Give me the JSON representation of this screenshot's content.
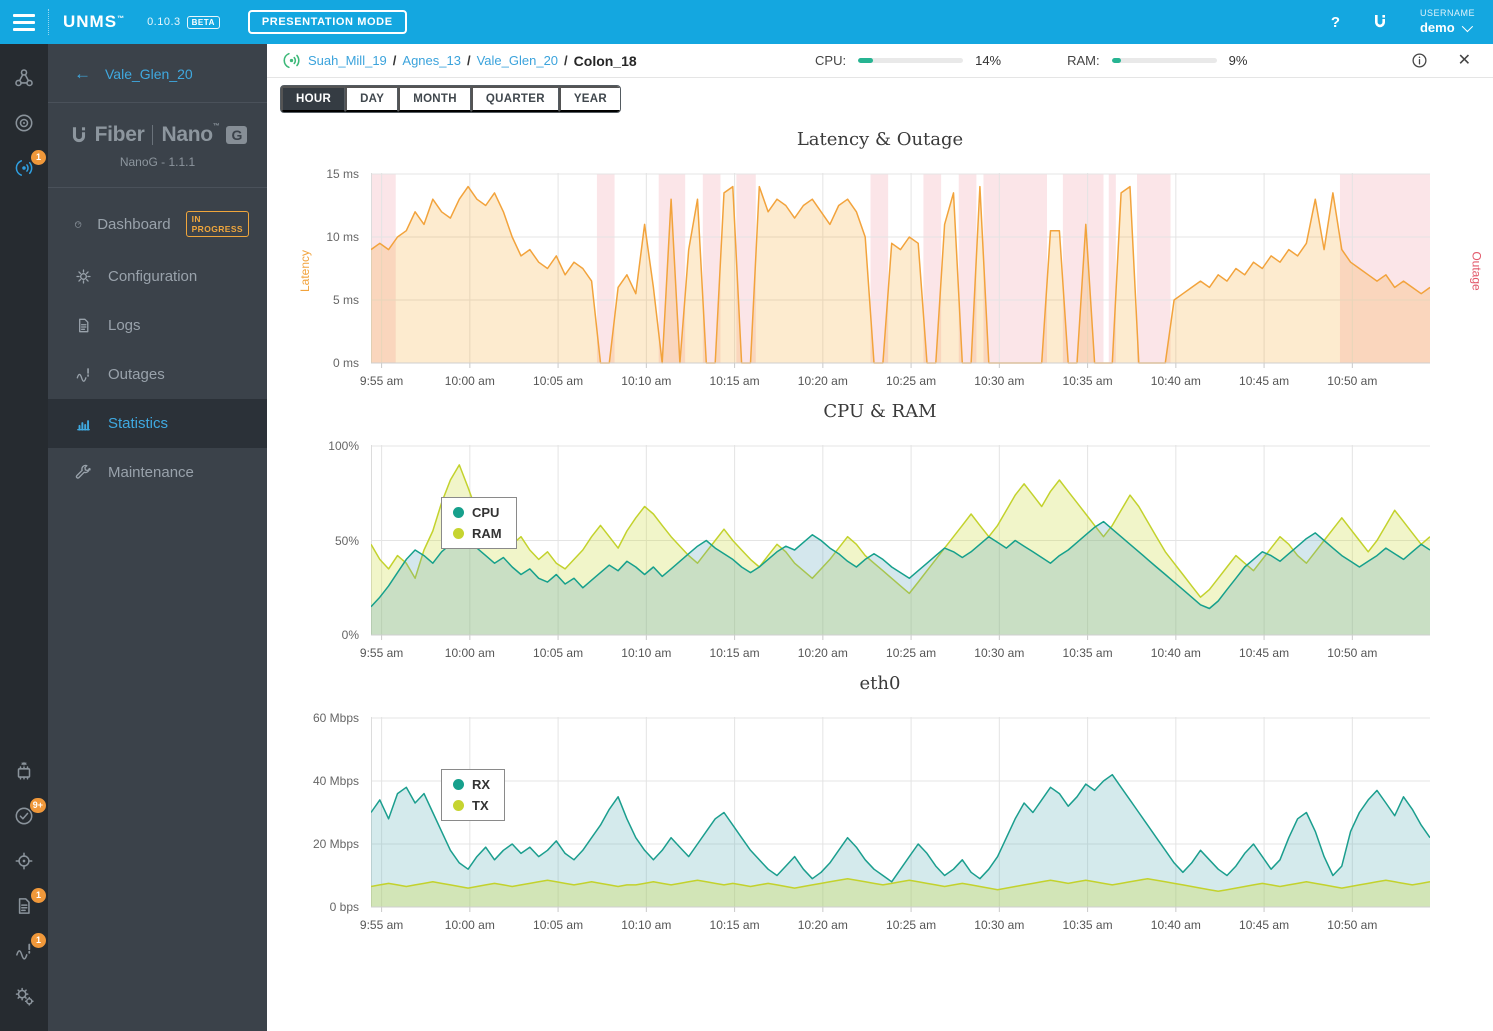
{
  "topbar": {
    "brand": "UNMS",
    "brand_tm": "™",
    "version": "0.10.3",
    "beta_label": "BETA",
    "presentation_label": "PRESENTATION MODE",
    "help_label": "?",
    "username_label": "USERNAME",
    "username": "demo"
  },
  "iconbar": {
    "top": [
      {
        "icon": "sites-icon"
      },
      {
        "icon": "radar-icon"
      },
      {
        "icon": "antenna-icon",
        "badge": "1",
        "active": true
      }
    ],
    "bottom": [
      {
        "icon": "chip-icon"
      },
      {
        "icon": "check-circle-icon",
        "badge": "9+"
      },
      {
        "icon": "locate-icon"
      },
      {
        "icon": "document-icon",
        "badge": "1"
      },
      {
        "icon": "pulse-icon",
        "badge": "1"
      },
      {
        "icon": "gears-icon"
      }
    ]
  },
  "sidebar": {
    "back_label": "Vale_Glen_20",
    "logo": {
      "u": "U",
      "fiber": "Fiber",
      "nano": "Nano",
      "tm": "™",
      "g_badge": "G"
    },
    "firmware": "NanoG - 1.1.1",
    "items": [
      {
        "label": "Dashboard",
        "icon": "gauge-icon",
        "badge": "IN PROGRESS",
        "active": false
      },
      {
        "label": "Configuration",
        "icon": "gear-icon",
        "badge": null,
        "active": false
      },
      {
        "label": "Logs",
        "icon": "document-icon",
        "badge": null,
        "active": false
      },
      {
        "label": "Outages",
        "icon": "pulse-icon",
        "badge": null,
        "active": false
      },
      {
        "label": "Statistics",
        "icon": "bar-chart-icon",
        "badge": null,
        "active": true
      },
      {
        "label": "Maintenance",
        "icon": "wrench-icon",
        "badge": null,
        "active": false
      }
    ]
  },
  "header": {
    "breadcrumb": [
      "Suah_Mill_19",
      "Agnes_13",
      "Vale_Glen_20"
    ],
    "breadcrumb_current": "Colon_18",
    "cpu_label": "CPU:",
    "cpu_value": "14%",
    "cpu_percent": 14,
    "ram_label": "RAM:",
    "ram_value": "9%",
    "ram_percent": 9
  },
  "tabs": {
    "items": [
      "HOUR",
      "DAY",
      "MONTH",
      "QUARTER",
      "YEAR"
    ],
    "active": "HOUR"
  },
  "colors": {
    "topbar_blue": "#14a7e0",
    "accent_blue": "#3fa9e0",
    "progress_green": "#26b492",
    "latency_orange": "#f2a33c",
    "outage_pink": "rgba(233,92,113,0.16)",
    "outage_label_red": "#e2596b",
    "teal": "#16a08c",
    "yellow_green": "#c6d430",
    "badge_orange": "#f0983a"
  },
  "chart_data": [
    {
      "type": "area",
      "title": "Latency & Outage",
      "left_axis_label": "Latency",
      "right_axis_label": "Outage",
      "xlim_minutes": [
        0,
        60
      ],
      "ylim": [
        0,
        15
      ],
      "yticks": [
        {
          "v": 0,
          "label": "0 ms"
        },
        {
          "v": 5,
          "label": "5 ms"
        },
        {
          "v": 10,
          "label": "10 ms"
        },
        {
          "v": 15,
          "label": "15 ms"
        }
      ],
      "xticks": {
        "positions": [
          0.6,
          5.6,
          10.6,
          15.6,
          20.6,
          25.6,
          30.6,
          35.6,
          40.6,
          45.6,
          50.6,
          55.6
        ],
        "labels": [
          "9:55 am",
          "10:00 am",
          "10:05 am",
          "10:10 am",
          "10:15 am",
          "10:20 am",
          "10:25 am",
          "10:30 am",
          "10:35 am",
          "10:40 am",
          "10:45 am",
          "10:50 am"
        ]
      },
      "outage_intervals_minutes": [
        [
          0,
          1.4
        ],
        [
          12.8,
          13.8
        ],
        [
          16.3,
          17.8
        ],
        [
          18.8,
          19.8
        ],
        [
          20.7,
          21.8
        ],
        [
          28.3,
          29.3
        ],
        [
          31.3,
          32.3
        ],
        [
          33.3,
          34.3
        ],
        [
          34.7,
          38.3
        ],
        [
          39.2,
          41.5
        ],
        [
          41.8,
          42.2
        ],
        [
          43.4,
          45.3
        ],
        [
          54.9,
          60
        ]
      ],
      "outage_color": "rgba(233,92,113,0.16)",
      "series": [
        {
          "name": "Latency",
          "color": "#f2a33c",
          "fill": "rgba(245,166,35,0.22)",
          "values": [
            9,
            9.5,
            9,
            10,
            10.5,
            12,
            11,
            13,
            12,
            11.5,
            13,
            14,
            13,
            12.5,
            13.5,
            12,
            10,
            8.5,
            9,
            8,
            7.5,
            8.5,
            7,
            8,
            7.5,
            6.5,
            0,
            0,
            6,
            7,
            5.5,
            11,
            6,
            0,
            13,
            0,
            9,
            13,
            0,
            0,
            13.5,
            14,
            0,
            0,
            14,
            12,
            13,
            12.5,
            11.5,
            12.5,
            13,
            12,
            11,
            12.5,
            13,
            12,
            10,
            0,
            0,
            9.5,
            9,
            10,
            9.5,
            0,
            0,
            11,
            13.5,
            0,
            0,
            14,
            0,
            0,
            0,
            0,
            0,
            0,
            0,
            10.5,
            10.5,
            0,
            0,
            11,
            0,
            0,
            0,
            13.5,
            14,
            0,
            0,
            0,
            0,
            5,
            5.5,
            6,
            6.5,
            6,
            7,
            6.5,
            7.5,
            7,
            8,
            7.5,
            8.5,
            8,
            9,
            8.5,
            9.5,
            13,
            9,
            13.5,
            9,
            8,
            7.5,
            7,
            6.5,
            7,
            6,
            6.5,
            6,
            5.5,
            6
          ]
        }
      ],
      "legend": false
    },
    {
      "type": "area",
      "title": "CPU & RAM",
      "xlim_minutes": [
        0,
        60
      ],
      "ylim": [
        0,
        100
      ],
      "yticks": [
        {
          "v": 0,
          "label": "0%"
        },
        {
          "v": 50,
          "label": "50%"
        },
        {
          "v": 100,
          "label": "100%"
        }
      ],
      "xticks": {
        "positions": [
          0.6,
          5.6,
          10.6,
          15.6,
          20.6,
          25.6,
          30.6,
          35.6,
          40.6,
          45.6,
          50.6,
          55.6
        ],
        "labels": [
          "9:55 am",
          "10:00 am",
          "10:05 am",
          "10:10 am",
          "10:15 am",
          "10:20 am",
          "10:25 am",
          "10:30 am",
          "10:35 am",
          "10:40 am",
          "10:45 am",
          "10:50 am"
        ]
      },
      "series": [
        {
          "name": "RAM",
          "color": "#c3d22d",
          "fill": "rgba(205,220,60,0.28)",
          "values": [
            48,
            40,
            35,
            42,
            38,
            30,
            45,
            55,
            70,
            82,
            90,
            78,
            65,
            58,
            62,
            55,
            48,
            52,
            45,
            40,
            44,
            38,
            35,
            40,
            45,
            52,
            58,
            52,
            46,
            55,
            62,
            68,
            64,
            58,
            52,
            47,
            42,
            38,
            44,
            50,
            56,
            50,
            45,
            40,
            36,
            42,
            48,
            44,
            38,
            34,
            30,
            35,
            40,
            46,
            52,
            48,
            42,
            38,
            34,
            30,
            26,
            22,
            28,
            34,
            40,
            46,
            52,
            58,
            64,
            58,
            52,
            58,
            66,
            74,
            80,
            74,
            68,
            76,
            82,
            76,
            70,
            64,
            58,
            52,
            58,
            66,
            74,
            68,
            60,
            52,
            44,
            38,
            32,
            26,
            20,
            24,
            30,
            36,
            42,
            38,
            34,
            40,
            46,
            52,
            48,
            42,
            38,
            44,
            50,
            56,
            62,
            56,
            50,
            44,
            50,
            58,
            66,
            60,
            54,
            48,
            52
          ]
        },
        {
          "name": "CPU",
          "color": "#16a08c",
          "fill": "rgba(84,160,185,0.25)",
          "values": [
            15,
            20,
            26,
            33,
            40,
            45,
            42,
            38,
            44,
            48,
            52,
            49,
            46,
            42,
            38,
            41,
            36,
            32,
            35,
            30,
            28,
            32,
            27,
            30,
            25,
            29,
            33,
            37,
            34,
            39,
            36,
            32,
            36,
            31,
            35,
            39,
            43,
            47,
            50,
            46,
            43,
            40,
            36,
            33,
            36,
            40,
            44,
            47,
            45,
            49,
            53,
            50,
            46,
            43,
            39,
            36,
            40,
            43,
            40,
            36,
            33,
            30,
            34,
            38,
            42,
            46,
            44,
            41,
            44,
            48,
            52,
            49,
            46,
            50,
            47,
            44,
            41,
            38,
            42,
            45,
            49,
            53,
            57,
            60,
            56,
            52,
            48,
            44,
            40,
            36,
            32,
            28,
            24,
            20,
            16,
            14,
            18,
            24,
            30,
            36,
            40,
            44,
            42,
            39,
            43,
            47,
            51,
            54,
            50,
            46,
            42,
            39,
            36,
            39,
            42,
            46,
            43,
            40,
            44,
            48,
            45
          ]
        }
      ],
      "legend": [
        {
          "name": "CPU",
          "color": "#16a08c"
        },
        {
          "name": "RAM",
          "color": "#c6d430"
        }
      ]
    },
    {
      "type": "area",
      "title": "eth0",
      "xlim_minutes": [
        0,
        60
      ],
      "ylim": [
        0,
        60
      ],
      "yticks": [
        {
          "v": 0,
          "label": "0 bps"
        },
        {
          "v": 20,
          "label": "20 Mbps"
        },
        {
          "v": 40,
          "label": "40 Mbps"
        },
        {
          "v": 60,
          "label": "60 Mbps"
        }
      ],
      "xticks": {
        "positions": [
          0.6,
          5.6,
          10.6,
          15.6,
          20.6,
          25.6,
          30.6,
          35.6,
          40.6,
          45.6,
          50.6,
          55.6
        ],
        "labels": [
          "9:55 am",
          "10:00 am",
          "10:05 am",
          "10:10 am",
          "10:15 am",
          "10:20 am",
          "10:25 am",
          "10:30 am",
          "10:35 am",
          "10:40 am",
          "10:45 am",
          "10:50 am"
        ]
      },
      "series": [
        {
          "name": "RX",
          "color": "#1b9e8e",
          "fill": "rgba(100,180,185,0.28)",
          "values": [
            30,
            34,
            28,
            36,
            38,
            33,
            36,
            30,
            24,
            18,
            14,
            12,
            16,
            19,
            15,
            18,
            20,
            17,
            19,
            16,
            18,
            21,
            17,
            15,
            18,
            22,
            26,
            31,
            35,
            28,
            22,
            18,
            15,
            18,
            22,
            19,
            16,
            20,
            24,
            28,
            30,
            26,
            22,
            18,
            15,
            12,
            10,
            13,
            16,
            12,
            9,
            11,
            14,
            18,
            22,
            19,
            15,
            12,
            10,
            8,
            12,
            16,
            20,
            17,
            13,
            10,
            12,
            15,
            11,
            9,
            12,
            16,
            22,
            28,
            33,
            30,
            34,
            38,
            36,
            32,
            35,
            39,
            37,
            40,
            42,
            38,
            34,
            30,
            26,
            22,
            18,
            14,
            11,
            14,
            18,
            15,
            12,
            10,
            13,
            17,
            20,
            16,
            12,
            15,
            22,
            28,
            30,
            24,
            16,
            10,
            13,
            24,
            30,
            34,
            37,
            33,
            29,
            35,
            31,
            26,
            22
          ]
        },
        {
          "name": "TX",
          "color": "#c3d22d",
          "fill": "rgba(205,220,60,0.30)",
          "values": [
            6.5,
            7,
            7.5,
            7,
            6.5,
            7,
            7.5,
            8,
            7.5,
            7,
            6.5,
            6,
            6.5,
            7,
            7.5,
            7,
            6.5,
            7,
            7.5,
            8,
            8.5,
            8,
            7.5,
            7,
            7.5,
            8,
            7.5,
            7,
            6.5,
            7,
            7,
            7.5,
            8,
            7.5,
            7,
            7.5,
            8,
            8.5,
            8,
            7.5,
            7,
            7.5,
            7,
            6.5,
            7,
            7.5,
            7,
            6.5,
            6,
            6.5,
            7,
            7.5,
            8,
            8.5,
            9,
            8.5,
            8,
            7.5,
            7,
            7.5,
            8,
            8.5,
            8,
            7.5,
            7,
            6.5,
            7,
            7.5,
            7,
            6.5,
            6,
            5.5,
            6,
            6.5,
            7,
            7.5,
            8,
            8.5,
            8,
            7.5,
            8,
            8.5,
            8,
            7.5,
            7,
            7.5,
            8,
            8.5,
            9,
            8.5,
            8,
            7.5,
            7,
            6.5,
            6,
            5.5,
            5,
            5.5,
            6,
            6.5,
            7,
            7.5,
            7,
            6.5,
            7,
            7.5,
            8,
            7.5,
            7,
            6.5,
            6,
            6.5,
            7,
            7.5,
            8,
            8.5,
            8,
            7.5,
            7,
            7.5,
            8
          ]
        }
      ],
      "legend": [
        {
          "name": "RX",
          "color": "#16a08c"
        },
        {
          "name": "TX",
          "color": "#c6d430"
        }
      ]
    }
  ]
}
